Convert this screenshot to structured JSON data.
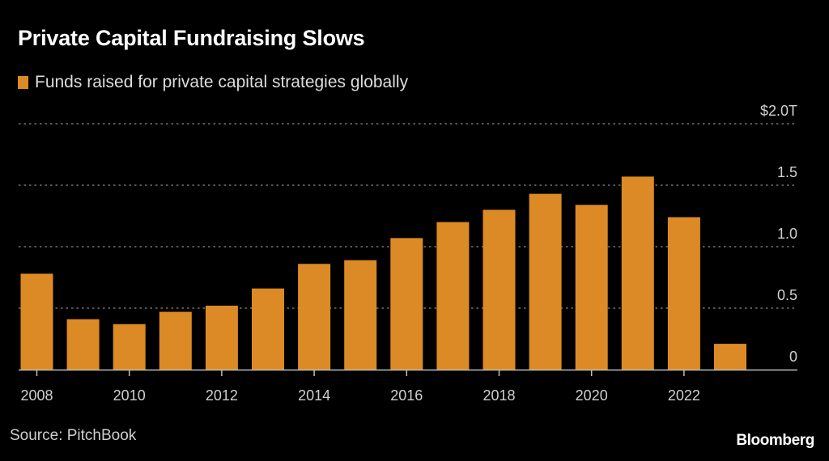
{
  "chart_data": {
    "type": "bar",
    "title": "Private Capital Fundraising Slows",
    "legend": [
      {
        "label": "Funds raised for private capital strategies globally",
        "color": "#dc8a25"
      }
    ],
    "legend_position": "top-left",
    "categories": [
      "2008",
      "2009",
      "2010",
      "2011",
      "2012",
      "2013",
      "2014",
      "2015",
      "2016",
      "2017",
      "2018",
      "2019",
      "2020",
      "2021",
      "2022",
      "2023"
    ],
    "series": [
      {
        "name": "Funds raised for private capital strategies globally",
        "values": [
          0.78,
          0.41,
          0.37,
          0.47,
          0.52,
          0.66,
          0.86,
          0.89,
          1.07,
          1.2,
          1.3,
          1.43,
          1.34,
          1.57,
          1.24,
          0.21
        ]
      }
    ],
    "xlabel": "",
    "ylabel": "",
    "ylim": [
      0,
      2.0
    ],
    "yticks": [
      {
        "value": 0,
        "label": "0"
      },
      {
        "value": 0.5,
        "label": "0.5"
      },
      {
        "value": 1.0,
        "label": "1.0"
      },
      {
        "value": 1.5,
        "label": "1.5"
      },
      {
        "value": 2.0,
        "label": "$2.0T"
      }
    ],
    "xticks": [
      "2008",
      "2010",
      "2012",
      "2014",
      "2016",
      "2018",
      "2020",
      "2022"
    ],
    "grid": true,
    "y_axis_side": "right",
    "bar_color": "#dc8a25"
  },
  "footer": {
    "source": "Source: PitchBook",
    "brand": "Bloomberg"
  }
}
